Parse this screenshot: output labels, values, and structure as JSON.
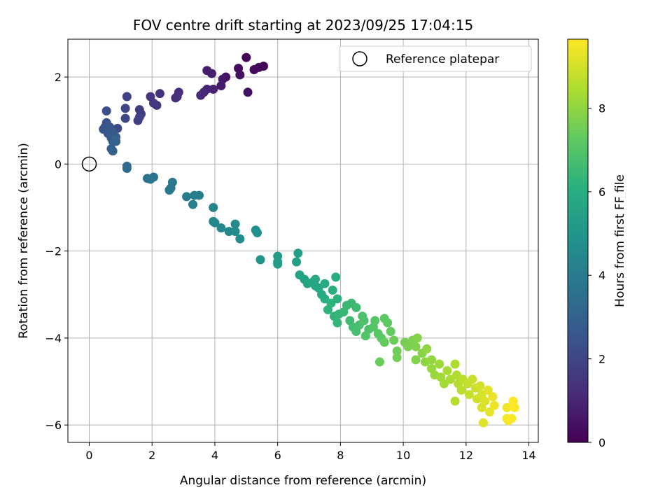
{
  "chart_data": {
    "type": "scatter",
    "title": "FOV centre drift starting at 2023/09/25 17:04:15",
    "xlabel": "Angular distance from reference (arcmin)",
    "ylabel": "Rotation from reference (arcmin)",
    "xlim": [
      -0.68,
      14.3
    ],
    "ylim": [
      -6.4,
      2.87
    ],
    "xticks": [
      0,
      2,
      4,
      6,
      8,
      10,
      12,
      14
    ],
    "yticks": [
      -6,
      -4,
      -2,
      0,
      2
    ],
    "grid": true,
    "legend": {
      "position": "top-right",
      "entries": [
        "Reference platepar"
      ]
    },
    "reference_point": {
      "x": 0,
      "y": 0
    },
    "colorbar": {
      "label": "Hours from first FF file",
      "range": [
        0,
        9.65
      ],
      "ticks": [
        0,
        2,
        4,
        6,
        8
      ],
      "colormap": "viridis"
    },
    "points": [
      {
        "x": 5.0,
        "y": 2.45,
        "h": 0.1
      },
      {
        "x": 5.55,
        "y": 2.25,
        "h": 0.15
      },
      {
        "x": 5.4,
        "y": 2.22,
        "h": 0.2
      },
      {
        "x": 5.25,
        "y": 2.17,
        "h": 0.25
      },
      {
        "x": 4.75,
        "y": 2.2,
        "h": 0.3
      },
      {
        "x": 4.8,
        "y": 2.05,
        "h": 0.4
      },
      {
        "x": 5.05,
        "y": 1.65,
        "h": 0.45
      },
      {
        "x": 4.35,
        "y": 2.0,
        "h": 0.5
      },
      {
        "x": 4.25,
        "y": 1.95,
        "h": 0.6
      },
      {
        "x": 4.2,
        "y": 1.8,
        "h": 0.7
      },
      {
        "x": 3.75,
        "y": 2.15,
        "h": 0.75
      },
      {
        "x": 3.9,
        "y": 2.08,
        "h": 0.8
      },
      {
        "x": 3.95,
        "y": 1.72,
        "h": 0.9
      },
      {
        "x": 3.75,
        "y": 1.72,
        "h": 1.0
      },
      {
        "x": 3.65,
        "y": 1.65,
        "h": 1.05
      },
      {
        "x": 3.55,
        "y": 1.58,
        "h": 1.1
      },
      {
        "x": 2.85,
        "y": 1.65,
        "h": 1.2
      },
      {
        "x": 2.8,
        "y": 1.55,
        "h": 1.25
      },
      {
        "x": 2.75,
        "y": 1.52,
        "h": 1.3
      },
      {
        "x": 2.25,
        "y": 1.62,
        "h": 1.4
      },
      {
        "x": 1.95,
        "y": 1.55,
        "h": 1.5
      },
      {
        "x": 2.05,
        "y": 1.4,
        "h": 1.55
      },
      {
        "x": 2.15,
        "y": 1.35,
        "h": 1.6
      },
      {
        "x": 1.6,
        "y": 1.25,
        "h": 1.65
      },
      {
        "x": 1.65,
        "y": 1.15,
        "h": 1.7
      },
      {
        "x": 1.55,
        "y": 1.0,
        "h": 1.8
      },
      {
        "x": 1.6,
        "y": 1.08,
        "h": 1.85
      },
      {
        "x": 1.2,
        "y": 1.55,
        "h": 1.9
      },
      {
        "x": 1.15,
        "y": 1.28,
        "h": 2.0
      },
      {
        "x": 1.15,
        "y": 1.05,
        "h": 2.1
      },
      {
        "x": 0.9,
        "y": 0.82,
        "h": 2.2
      },
      {
        "x": 0.55,
        "y": 1.22,
        "h": 2.3
      },
      {
        "x": 0.55,
        "y": 0.95,
        "h": 2.4
      },
      {
        "x": 0.5,
        "y": 0.85,
        "h": 2.5
      },
      {
        "x": 0.45,
        "y": 0.8,
        "h": 2.55
      },
      {
        "x": 0.65,
        "y": 0.85,
        "h": 2.6
      },
      {
        "x": 0.6,
        "y": 0.7,
        "h": 2.65
      },
      {
        "x": 0.75,
        "y": 0.72,
        "h": 2.7
      },
      {
        "x": 0.85,
        "y": 0.62,
        "h": 2.75
      },
      {
        "x": 0.7,
        "y": 0.6,
        "h": 2.8
      },
      {
        "x": 0.75,
        "y": 0.52,
        "h": 2.85
      },
      {
        "x": 0.85,
        "y": 0.52,
        "h": 2.9
      },
      {
        "x": 0.7,
        "y": 0.35,
        "h": 2.95
      },
      {
        "x": 0.75,
        "y": 0.3,
        "h": 3.0
      },
      {
        "x": 0.8,
        "y": 0.55,
        "h": 3.05
      },
      {
        "x": 1.2,
        "y": -0.05,
        "h": 3.3
      },
      {
        "x": 1.2,
        "y": -0.1,
        "h": 3.35
      },
      {
        "x": 1.85,
        "y": -0.33,
        "h": 3.6
      },
      {
        "x": 2.05,
        "y": -0.3,
        "h": 3.65
      },
      {
        "x": 1.95,
        "y": -0.35,
        "h": 3.7
      },
      {
        "x": 2.6,
        "y": -0.55,
        "h": 3.8
      },
      {
        "x": 2.65,
        "y": -0.42,
        "h": 3.85
      },
      {
        "x": 2.55,
        "y": -0.6,
        "h": 3.9
      },
      {
        "x": 3.1,
        "y": -0.75,
        "h": 4.0
      },
      {
        "x": 3.35,
        "y": -0.72,
        "h": 4.05
      },
      {
        "x": 3.5,
        "y": -0.72,
        "h": 4.1
      },
      {
        "x": 3.3,
        "y": -0.93,
        "h": 4.15
      },
      {
        "x": 3.95,
        "y": -1.0,
        "h": 4.3
      },
      {
        "x": 3.95,
        "y": -1.32,
        "h": 4.35
      },
      {
        "x": 4.0,
        "y": -1.35,
        "h": 4.4
      },
      {
        "x": 4.2,
        "y": -1.47,
        "h": 4.45
      },
      {
        "x": 4.45,
        "y": -1.55,
        "h": 4.5
      },
      {
        "x": 4.65,
        "y": -1.38,
        "h": 4.55
      },
      {
        "x": 4.65,
        "y": -1.55,
        "h": 4.6
      },
      {
        "x": 4.8,
        "y": -1.72,
        "h": 4.65
      },
      {
        "x": 5.3,
        "y": -1.52,
        "h": 4.8
      },
      {
        "x": 5.35,
        "y": -1.58,
        "h": 4.85
      },
      {
        "x": 5.45,
        "y": -2.2,
        "h": 5.0
      },
      {
        "x": 6.0,
        "y": -2.12,
        "h": 5.2
      },
      {
        "x": 6.0,
        "y": -2.25,
        "h": 5.25
      },
      {
        "x": 6.0,
        "y": -2.3,
        "h": 5.3
      },
      {
        "x": 6.65,
        "y": -2.05,
        "h": 5.4
      },
      {
        "x": 6.6,
        "y": -2.25,
        "h": 5.45
      },
      {
        "x": 6.7,
        "y": -2.55,
        "h": 5.5
      },
      {
        "x": 6.85,
        "y": -2.65,
        "h": 5.55
      },
      {
        "x": 6.95,
        "y": -2.75,
        "h": 5.6
      },
      {
        "x": 7.1,
        "y": -2.72,
        "h": 5.65
      },
      {
        "x": 7.2,
        "y": -2.8,
        "h": 5.7
      },
      {
        "x": 7.3,
        "y": -2.85,
        "h": 5.75
      },
      {
        "x": 7.2,
        "y": -2.65,
        "h": 5.8
      },
      {
        "x": 7.5,
        "y": -2.75,
        "h": 5.85
      },
      {
        "x": 7.4,
        "y": -3.0,
        "h": 5.9
      },
      {
        "x": 7.5,
        "y": -3.1,
        "h": 5.95
      },
      {
        "x": 7.85,
        "y": -2.6,
        "h": 6.0
      },
      {
        "x": 7.75,
        "y": -2.9,
        "h": 6.05
      },
      {
        "x": 7.9,
        "y": -3.1,
        "h": 6.1
      },
      {
        "x": 7.7,
        "y": -3.2,
        "h": 6.15
      },
      {
        "x": 7.6,
        "y": -3.35,
        "h": 6.2
      },
      {
        "x": 7.8,
        "y": -3.5,
        "h": 6.25
      },
      {
        "x": 7.95,
        "y": -3.45,
        "h": 6.3
      },
      {
        "x": 7.9,
        "y": -3.65,
        "h": 6.35
      },
      {
        "x": 8.1,
        "y": -3.4,
        "h": 6.4
      },
      {
        "x": 8.2,
        "y": -3.25,
        "h": 6.45
      },
      {
        "x": 8.35,
        "y": -3.2,
        "h": 6.5
      },
      {
        "x": 8.5,
        "y": -3.3,
        "h": 6.55
      },
      {
        "x": 8.3,
        "y": -3.6,
        "h": 6.6
      },
      {
        "x": 8.4,
        "y": -3.75,
        "h": 6.65
      },
      {
        "x": 8.5,
        "y": -3.85,
        "h": 6.7
      },
      {
        "x": 8.6,
        "y": -3.7,
        "h": 6.75
      },
      {
        "x": 8.7,
        "y": -3.5,
        "h": 6.8
      },
      {
        "x": 8.75,
        "y": -3.6,
        "h": 6.85
      },
      {
        "x": 8.9,
        "y": -3.8,
        "h": 6.9
      },
      {
        "x": 8.8,
        "y": -3.95,
        "h": 6.95
      },
      {
        "x": 9.05,
        "y": -3.75,
        "h": 7.0
      },
      {
        "x": 9.1,
        "y": -3.6,
        "h": 7.05
      },
      {
        "x": 9.2,
        "y": -3.9,
        "h": 7.1
      },
      {
        "x": 9.3,
        "y": -4.0,
        "h": 7.15
      },
      {
        "x": 9.4,
        "y": -3.55,
        "h": 7.2
      },
      {
        "x": 9.5,
        "y": -3.65,
        "h": 7.25
      },
      {
        "x": 9.6,
        "y": -3.85,
        "h": 7.3
      },
      {
        "x": 9.4,
        "y": -4.1,
        "h": 7.35
      },
      {
        "x": 9.25,
        "y": -4.55,
        "h": 7.4
      },
      {
        "x": 9.7,
        "y": -4.05,
        "h": 7.45
      },
      {
        "x": 9.8,
        "y": -4.3,
        "h": 7.5
      },
      {
        "x": 9.8,
        "y": -4.45,
        "h": 7.55
      },
      {
        "x": 10.05,
        "y": -4.1,
        "h": 7.6
      },
      {
        "x": 10.15,
        "y": -4.2,
        "h": 7.65
      },
      {
        "x": 10.3,
        "y": -4.05,
        "h": 7.7
      },
      {
        "x": 10.4,
        "y": -4.2,
        "h": 7.75
      },
      {
        "x": 10.4,
        "y": -4.5,
        "h": 7.8
      },
      {
        "x": 10.45,
        "y": -4.0,
        "h": 7.85
      },
      {
        "x": 10.6,
        "y": -4.35,
        "h": 7.9
      },
      {
        "x": 10.7,
        "y": -4.55,
        "h": 7.95
      },
      {
        "x": 10.75,
        "y": -4.25,
        "h": 8.0
      },
      {
        "x": 10.9,
        "y": -4.5,
        "h": 8.05
      },
      {
        "x": 10.9,
        "y": -4.7,
        "h": 8.1
      },
      {
        "x": 11.0,
        "y": -4.85,
        "h": 8.15
      },
      {
        "x": 11.15,
        "y": -4.6,
        "h": 8.2
      },
      {
        "x": 11.2,
        "y": -4.9,
        "h": 8.25
      },
      {
        "x": 11.3,
        "y": -5.05,
        "h": 8.3
      },
      {
        "x": 11.4,
        "y": -4.75,
        "h": 8.35
      },
      {
        "x": 11.5,
        "y": -4.95,
        "h": 8.4
      },
      {
        "x": 11.65,
        "y": -4.6,
        "h": 8.45
      },
      {
        "x": 11.7,
        "y": -4.85,
        "h": 8.5
      },
      {
        "x": 11.75,
        "y": -5.05,
        "h": 8.55
      },
      {
        "x": 11.65,
        "y": -5.45,
        "h": 8.6
      },
      {
        "x": 11.85,
        "y": -5.2,
        "h": 8.65
      },
      {
        "x": 11.9,
        "y": -4.95,
        "h": 8.7
      },
      {
        "x": 12.05,
        "y": -5.05,
        "h": 8.75
      },
      {
        "x": 12.1,
        "y": -5.3,
        "h": 8.8
      },
      {
        "x": 12.2,
        "y": -4.95,
        "h": 8.85
      },
      {
        "x": 12.3,
        "y": -5.15,
        "h": 8.9
      },
      {
        "x": 12.35,
        "y": -5.4,
        "h": 8.95
      },
      {
        "x": 12.45,
        "y": -5.1,
        "h": 9.0
      },
      {
        "x": 12.5,
        "y": -5.3,
        "h": 9.05
      },
      {
        "x": 12.5,
        "y": -5.6,
        "h": 9.1
      },
      {
        "x": 12.6,
        "y": -5.45,
        "h": 9.15
      },
      {
        "x": 12.55,
        "y": -5.95,
        "h": 9.2
      },
      {
        "x": 12.7,
        "y": -5.2,
        "h": 9.25
      },
      {
        "x": 12.75,
        "y": -5.7,
        "h": 9.3
      },
      {
        "x": 12.85,
        "y": -5.35,
        "h": 9.35
      },
      {
        "x": 12.9,
        "y": -5.55,
        "h": 9.4
      },
      {
        "x": 13.3,
        "y": -5.6,
        "h": 9.45
      },
      {
        "x": 13.3,
        "y": -5.85,
        "h": 9.5
      },
      {
        "x": 13.35,
        "y": -5.9,
        "h": 9.55
      },
      {
        "x": 13.45,
        "y": -5.85,
        "h": 9.6
      },
      {
        "x": 13.5,
        "y": -5.45,
        "h": 9.62
      },
      {
        "x": 13.55,
        "y": -5.6,
        "h": 9.64
      }
    ]
  }
}
